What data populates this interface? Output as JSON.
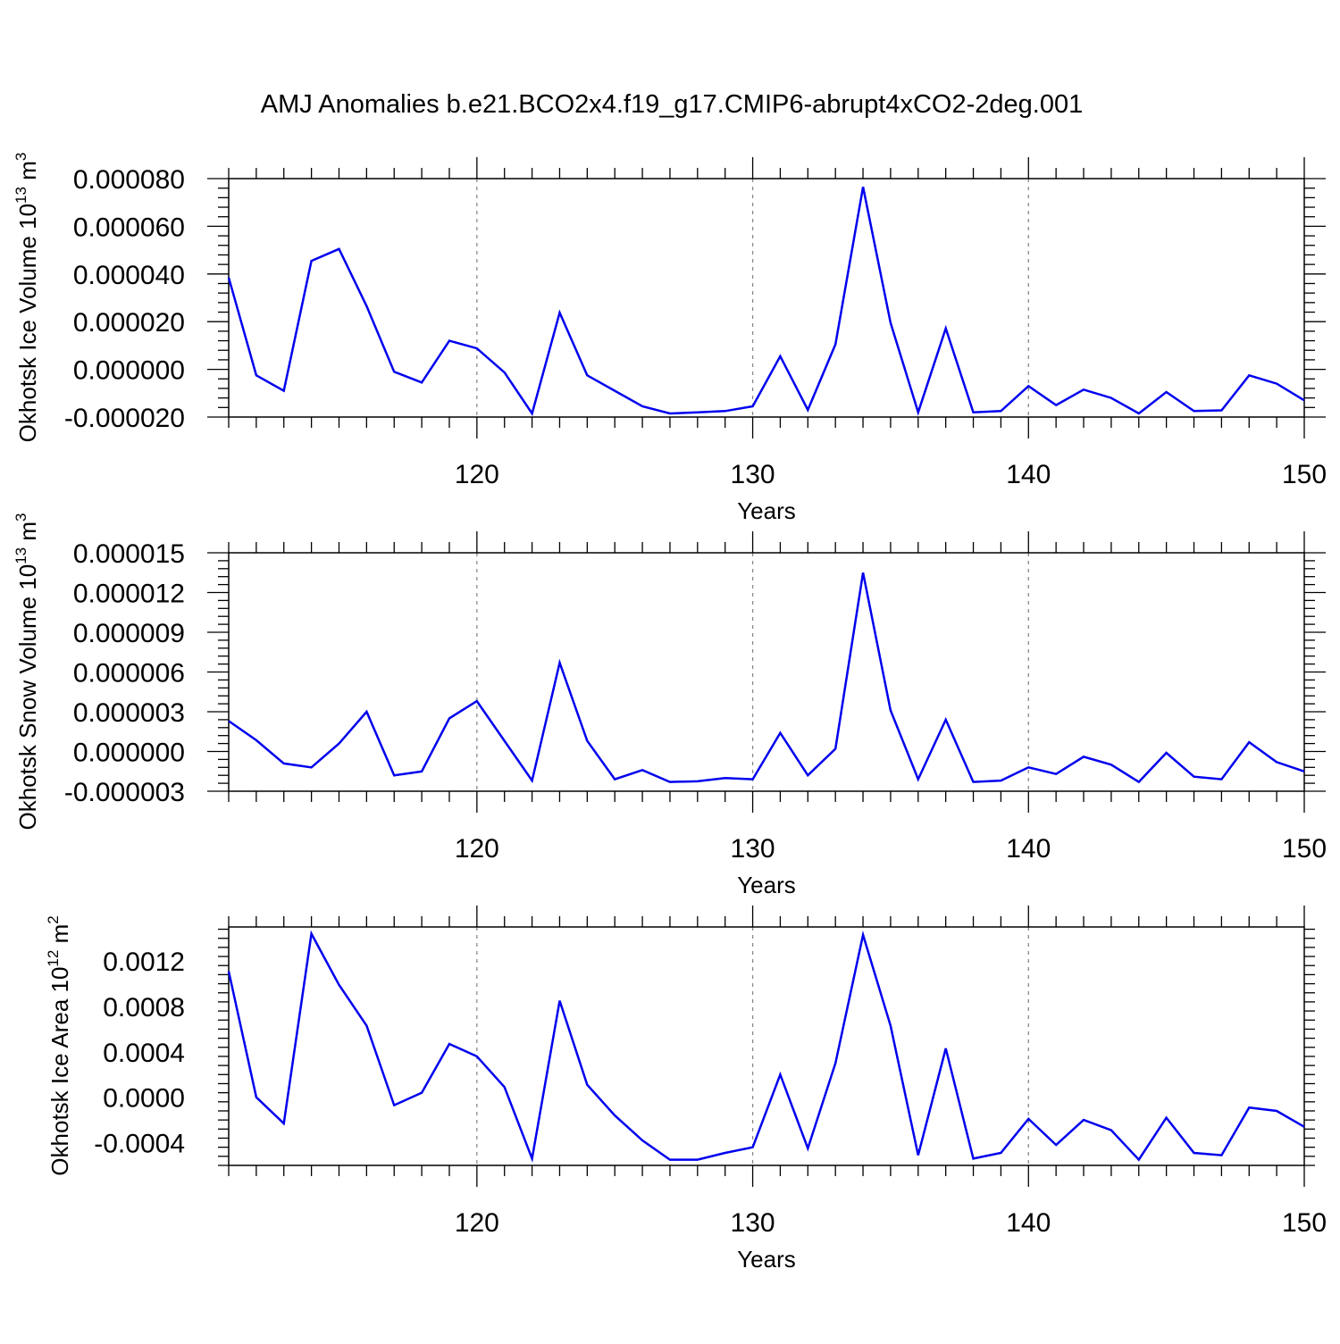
{
  "figure": {
    "title": "AMJ Anomalies b.e21.BCO2x4.f19_g17.CMIP6-abrupt4xCO2-2deg.001"
  },
  "chart_data": [
    {
      "type": "line",
      "ylabel_main": "Okhotsk Ice Volume 10",
      "ylabel_exp": "13",
      "ylabel_unit": " m",
      "ylabel_unit_exp": "3",
      "xlabel": "Years",
      "xlim": [
        111,
        150
      ],
      "ylim": [
        -2e-05,
        8e-05
      ],
      "yticks": [
        -2e-05,
        0.0,
        2e-05,
        4e-05,
        6e-05,
        8e-05
      ],
      "ytick_labels": [
        "-0.000020",
        "0.000000",
        "0.000020",
        "0.000040",
        "0.000060",
        "0.000080"
      ],
      "xticks": [
        120,
        130,
        140,
        150
      ],
      "xtick_labels": [
        "120",
        "130",
        "140",
        "150"
      ],
      "line_color": "#0000ee",
      "series": [
        {
          "x": [
            111,
            112,
            113,
            114,
            115,
            116,
            117,
            118,
            119,
            120,
            121,
            122,
            123,
            124,
            125,
            126,
            127,
            128,
            129,
            130,
            131,
            132,
            133,
            134,
            135,
            136,
            137,
            138,
            139,
            140,
            141,
            142,
            143,
            144,
            145,
            146,
            147,
            148,
            149,
            150
          ],
          "values": [
            3.85e-05,
            -2.5e-06,
            -9e-06,
            4.55e-05,
            5.05e-05,
            2.65e-05,
            -1e-06,
            -5.5e-06,
            1.2e-05,
            8.8e-06,
            -1.3e-06,
            -1.85e-05,
            2.38e-05,
            -2.5e-06,
            -9e-06,
            -1.55e-05,
            -1.85e-05,
            -1.8e-05,
            -1.75e-05,
            -1.55e-05,
            5.5e-06,
            -1.7e-05,
            1.05e-05,
            7.65e-05,
            1.95e-05,
            -1.8e-05,
            1.72e-05,
            -1.8e-05,
            -1.75e-05,
            -7e-06,
            -1.5e-05,
            -8.5e-06,
            -1.2e-05,
            -1.85e-05,
            -9.5e-06,
            -1.75e-05,
            -1.72e-05,
            -2.5e-06,
            -6e-06,
            -1.3e-05
          ]
        }
      ]
    },
    {
      "type": "line",
      "ylabel_main": "Okhotsk Snow Volume 10",
      "ylabel_exp": "13",
      "ylabel_unit": " m",
      "ylabel_unit_exp": "3",
      "xlabel": "Years",
      "xlim": [
        111,
        150
      ],
      "ylim": [
        -3e-06,
        1.5e-05
      ],
      "yticks": [
        -3e-06,
        0.0,
        3e-06,
        6e-06,
        9e-06,
        1.2e-05,
        1.5e-05
      ],
      "ytick_labels": [
        "-0.000003",
        "0.000000",
        "0.000003",
        "0.000006",
        "0.000009",
        "0.000012",
        "0.000015"
      ],
      "xticks": [
        120,
        130,
        140,
        150
      ],
      "xtick_labels": [
        "120",
        "130",
        "140",
        "150"
      ],
      "line_color": "#0000ee",
      "series": [
        {
          "x": [
            111,
            112,
            113,
            114,
            115,
            116,
            117,
            118,
            119,
            120,
            121,
            122,
            123,
            124,
            125,
            126,
            127,
            128,
            129,
            130,
            131,
            132,
            133,
            134,
            135,
            136,
            137,
            138,
            139,
            140,
            141,
            142,
            143,
            144,
            145,
            146,
            147,
            148,
            149,
            150
          ],
          "values": [
            2.3e-06,
            8.5e-07,
            -9e-07,
            -1.2e-06,
            6e-07,
            3e-06,
            -1.8e-06,
            -1.5e-06,
            2.5e-06,
            3.8e-06,
            8e-07,
            -2.2e-06,
            6.7e-06,
            8e-07,
            -2.1e-06,
            -1.4e-06,
            -2.3e-06,
            -2.25e-06,
            -2e-06,
            -2.1e-06,
            1.4e-06,
            -1.8e-06,
            2e-07,
            1.35e-05,
            3.1e-06,
            -2.1e-06,
            2.4e-06,
            -2.3e-06,
            -2.2e-06,
            -1.2e-06,
            -1.7e-06,
            -4e-07,
            -1e-06,
            -2.3e-06,
            -1e-07,
            -1.9e-06,
            -2.1e-06,
            7e-07,
            -8e-07,
            -1.5e-06
          ]
        }
      ]
    },
    {
      "type": "line",
      "ylabel_main": "Okhotsk Ice Area 10",
      "ylabel_exp": "12",
      "ylabel_unit": " m",
      "ylabel_unit_exp": "2",
      "xlabel": "Years",
      "xlim": [
        111,
        150
      ],
      "ylim": [
        -0.0006,
        0.0015
      ],
      "yticks": [
        -0.0004,
        0.0,
        0.0004,
        0.0008,
        0.0012
      ],
      "ytick_labels": [
        "-0.0004",
        "0.0000",
        "0.0004",
        "0.0008",
        "0.0012"
      ],
      "xticks": [
        120,
        130,
        140,
        150
      ],
      "xtick_labels": [
        "120",
        "130",
        "140",
        "150"
      ],
      "line_color": "#0000ee",
      "series": [
        {
          "x": [
            111,
            112,
            113,
            114,
            115,
            116,
            117,
            118,
            119,
            120,
            121,
            122,
            123,
            124,
            125,
            126,
            127,
            128,
            129,
            130,
            131,
            132,
            133,
            134,
            135,
            136,
            137,
            138,
            139,
            140,
            141,
            142,
            143,
            144,
            145,
            146,
            147,
            148,
            149,
            150
          ],
          "values": [
            0.00111,
            0.0,
            -0.00023,
            0.00144,
            0.00099,
            0.00063,
            -7e-05,
            4e-05,
            0.00047,
            0.00036,
            9e-05,
            -0.00054,
            0.00085,
            0.00011,
            -0.00016,
            -0.00038,
            -0.00055,
            -0.00055,
            -0.00049,
            -0.00044,
            0.0002,
            -0.00045,
            0.0003,
            0.00143,
            0.00063,
            -0.00051,
            0.00043,
            -0.00054,
            -0.00049,
            -0.00019,
            -0.00042,
            -0.0002,
            -0.00029,
            -0.00055,
            -0.00018,
            -0.00049,
            -0.00051,
            -9e-05,
            -0.00012,
            -0.00026
          ]
        }
      ]
    }
  ]
}
